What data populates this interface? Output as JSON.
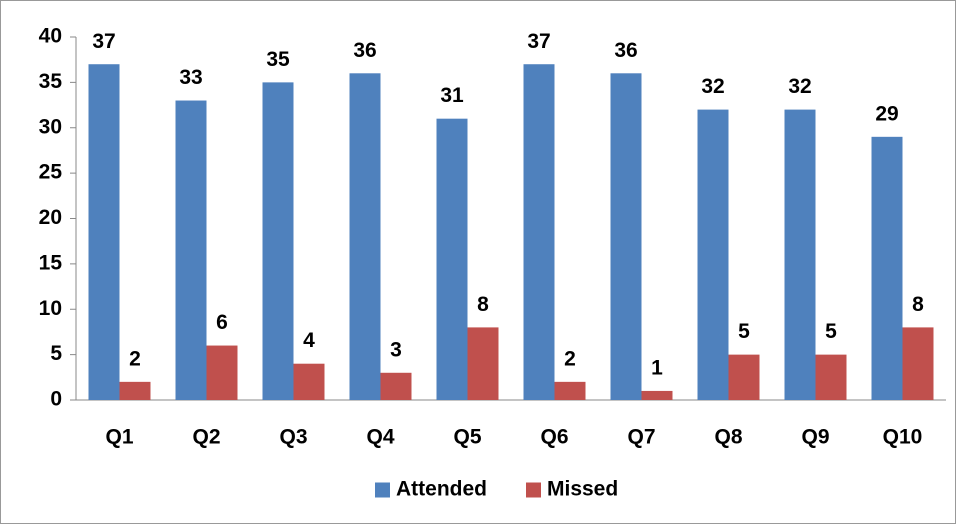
{
  "chart_data": {
    "type": "bar",
    "categories": [
      "Q1",
      "Q2",
      "Q3",
      "Q4",
      "Q5",
      "Q6",
      "Q7",
      "Q8",
      "Q9",
      "Q10"
    ],
    "series": [
      {
        "name": "Attended",
        "color": "#4f81bd",
        "values": [
          37,
          33,
          35,
          36,
          31,
          37,
          36,
          32,
          32,
          29
        ]
      },
      {
        "name": "Missed",
        "color": "#c0504d",
        "values": [
          2,
          6,
          4,
          3,
          8,
          2,
          1,
          5,
          5,
          8
        ]
      }
    ],
    "ylim": [
      0,
      40
    ],
    "yticks": [
      0,
      5,
      10,
      15,
      20,
      25,
      30,
      35,
      40
    ],
    "grid": false,
    "legend": "bottom"
  }
}
